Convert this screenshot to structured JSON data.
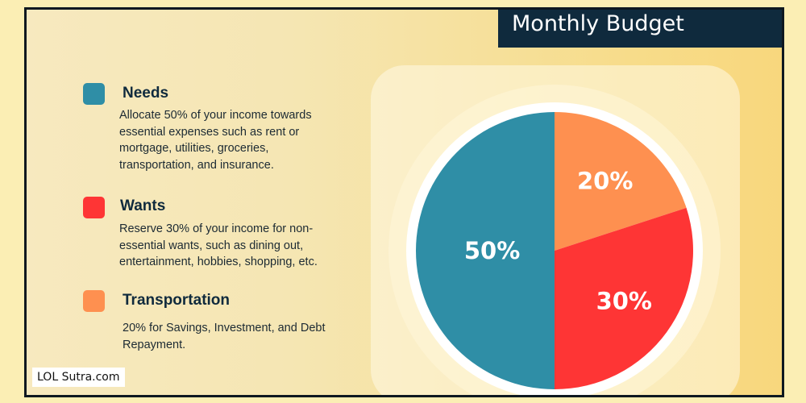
{
  "header": {
    "title": "Monthly Budget"
  },
  "legend": [
    {
      "name": "Needs",
      "color": "#2f8ea6",
      "description": "Allocate 50% of your income towards essential expenses such as rent or mortgage, utilities, groceries, transportation, and insurance."
    },
    {
      "name": "Wants",
      "color": "#fe3535",
      "description": "Reserve 30% of your income for non-essential wants, such as dining out, entertainment, hobbies, shopping, etc."
    },
    {
      "name": "Transportation",
      "color": "#fe9050",
      "description": "20% for Savings, Investment, and Debt Repayment."
    }
  ],
  "chart_data": {
    "type": "pie",
    "slices": [
      {
        "label": "20%",
        "value": 20,
        "color": "#fe9050"
      },
      {
        "label": "30%",
        "value": 30,
        "color": "#fe3535"
      },
      {
        "label": "50%",
        "value": 50,
        "color": "#2f8ea6"
      }
    ]
  },
  "footer": {
    "watermark": "LOL Sutra.com"
  }
}
